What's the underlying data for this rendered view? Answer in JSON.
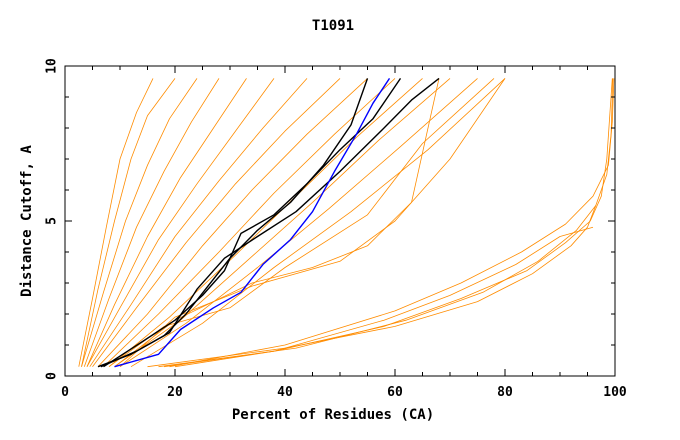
{
  "chart_data": {
    "type": "line",
    "title": "T1091",
    "xlabel": "Percent of Residues (CA)",
    "ylabel": "Distance Cutoff, A",
    "xlim": [
      0,
      100
    ],
    "ylim": [
      0,
      10
    ],
    "xticks": [
      0,
      20,
      40,
      60,
      80,
      100
    ],
    "yticks": [
      0,
      5,
      10
    ],
    "grid": false,
    "colors": {
      "background": "#ffffff",
      "axes": "#000000",
      "bundle": "#ff8c00",
      "highlight": "#000000",
      "reference": "#0000ff"
    },
    "series": [
      {
        "group": "bundle",
        "x": [
          2.5,
          5,
          7.5,
          10,
          13,
          16
        ],
        "y": [
          0.3,
          2.5,
          4.8,
          7.0,
          8.5,
          9.6
        ]
      },
      {
        "group": "bundle",
        "x": [
          3,
          6,
          9,
          12,
          15,
          20
        ],
        "y": [
          0.3,
          2.8,
          5.0,
          7.0,
          8.4,
          9.6
        ]
      },
      {
        "group": "bundle",
        "x": [
          3,
          7,
          11,
          15,
          19,
          24
        ],
        "y": [
          0.3,
          2.7,
          5.0,
          6.8,
          8.3,
          9.6
        ]
      },
      {
        "group": "bundle",
        "x": [
          3.5,
          8,
          13,
          18,
          23,
          28
        ],
        "y": [
          0.3,
          2.5,
          4.8,
          6.6,
          8.2,
          9.6
        ]
      },
      {
        "group": "bundle",
        "x": [
          4,
          9,
          15,
          21,
          27,
          33
        ],
        "y": [
          0.3,
          2.3,
          4.5,
          6.4,
          8.0,
          9.6
        ]
      },
      {
        "group": "bundle",
        "x": [
          4,
          10,
          17,
          24,
          31,
          38
        ],
        "y": [
          0.3,
          2.2,
          4.4,
          6.2,
          7.9,
          9.6
        ]
      },
      {
        "group": "bundle",
        "x": [
          4.5,
          12,
          20,
          28,
          36,
          44
        ],
        "y": [
          0.3,
          2.3,
          4.5,
          6.3,
          8.0,
          9.6
        ]
      },
      {
        "group": "bundle",
        "x": [
          5,
          13,
          22,
          31,
          40,
          50
        ],
        "y": [
          0.3,
          2.2,
          4.3,
          6.2,
          7.9,
          9.6
        ]
      },
      {
        "group": "bundle",
        "x": [
          6,
          15,
          25,
          34,
          44,
          55
        ],
        "y": [
          0.3,
          2.0,
          4.2,
          6.0,
          7.8,
          9.6
        ]
      },
      {
        "group": "bundle",
        "x": [
          7,
          17,
          28,
          38,
          49,
          60
        ],
        "y": [
          0.3,
          2.0,
          4.0,
          5.9,
          7.8,
          9.6
        ]
      },
      {
        "group": "bundle",
        "x": [
          8,
          19,
          31,
          42,
          53,
          65
        ],
        "y": [
          0.3,
          1.9,
          3.9,
          5.8,
          7.7,
          9.6
        ]
      },
      {
        "group": "bundle",
        "x": [
          9,
          21,
          33,
          45,
          57,
          70
        ],
        "y": [
          0.3,
          1.8,
          3.7,
          5.6,
          7.6,
          9.6
        ]
      },
      {
        "group": "bundle",
        "x": [
          10,
          22,
          35,
          48,
          61,
          75
        ],
        "y": [
          0.3,
          1.7,
          3.5,
          5.4,
          7.4,
          9.6
        ]
      },
      {
        "group": "bundle",
        "x": [
          12,
          25,
          38,
          52,
          66,
          80
        ],
        "y": [
          0.3,
          1.7,
          3.5,
          5.3,
          7.3,
          9.6
        ]
      },
      {
        "group": "bundle",
        "x": [
          10,
          20,
          34,
          50,
          60,
          70,
          80
        ],
        "y": [
          0.3,
          1.9,
          2.9,
          3.7,
          5.0,
          7.0,
          9.6
        ]
      },
      {
        "group": "bundle",
        "x": [
          8,
          18,
          30,
          40,
          55,
          65,
          78
        ],
        "y": [
          0.3,
          1.6,
          2.2,
          3.5,
          5.2,
          7.5,
          9.6
        ]
      },
      {
        "group": "bundle",
        "x": [
          9,
          20,
          34,
          45,
          55,
          63,
          68
        ],
        "y": [
          0.3,
          1.8,
          3.0,
          3.5,
          4.2,
          5.6,
          9.6
        ]
      },
      {
        "group": "bundle",
        "x": [
          15,
          40,
          60,
          75,
          85,
          92,
          95,
          96.5
        ],
        "y": [
          0.3,
          0.9,
          1.6,
          2.4,
          3.3,
          4.2,
          4.8,
          5.5
        ]
      },
      {
        "group": "bundle",
        "x": [
          17,
          38,
          58,
          72,
          84,
          91,
          95.5,
          97.5,
          98.5,
          99.5
        ],
        "y": [
          0.3,
          0.8,
          1.6,
          2.5,
          3.4,
          4.3,
          5.0,
          5.8,
          7.0,
          9.6
        ]
      },
      {
        "group": "bundle",
        "x": [
          18,
          42,
          62,
          76,
          86,
          93,
          96.5,
          98.5,
          99.3,
          99.6
        ],
        "y": [
          0.3,
          0.9,
          1.8,
          2.7,
          3.7,
          4.7,
          5.5,
          6.5,
          7.8,
          9.6
        ]
      },
      {
        "group": "bundle",
        "x": [
          19,
          40,
          60,
          72,
          83,
          91,
          96,
          98.8,
          99.5,
          99.8
        ],
        "y": [
          0.3,
          1.0,
          2.1,
          3.0,
          4.0,
          4.9,
          5.8,
          6.8,
          8.2,
          9.6
        ]
      },
      {
        "group": "bundle",
        "x": [
          20,
          38,
          58,
          70,
          82,
          90,
          96
        ],
        "y": [
          0.3,
          0.8,
          1.8,
          2.6,
          3.6,
          4.5,
          4.8
        ]
      },
      {
        "group": "highlight",
        "x": [
          6,
          12,
          18,
          22,
          26,
          30,
          35,
          41,
          47,
          52,
          55
        ],
        "y": [
          0.3,
          0.7,
          1.3,
          2.0,
          2.9,
          3.8,
          4.7,
          5.6,
          6.8,
          8.1,
          9.6
        ]
      },
      {
        "group": "highlight",
        "x": [
          7,
          14,
          20,
          25,
          29,
          32,
          38,
          44,
          50,
          56,
          61
        ],
        "y": [
          0.3,
          1.1,
          1.8,
          2.6,
          3.4,
          4.6,
          5.2,
          6.2,
          7.3,
          8.3,
          9.6
        ]
      },
      {
        "group": "highlight",
        "x": [
          6.5,
          13,
          19,
          24,
          29,
          35,
          42,
          50,
          58,
          63,
          68
        ],
        "y": [
          0.3,
          0.8,
          1.4,
          2.8,
          3.8,
          4.5,
          5.3,
          6.6,
          8.0,
          8.9,
          9.6
        ]
      },
      {
        "group": "reference",
        "x": [
          9,
          17,
          21,
          27,
          32,
          36,
          41,
          45,
          49,
          53,
          56,
          59
        ],
        "y": [
          0.3,
          0.7,
          1.5,
          2.2,
          2.7,
          3.6,
          4.4,
          5.3,
          6.6,
          7.8,
          8.8,
          9.6
        ]
      }
    ]
  }
}
